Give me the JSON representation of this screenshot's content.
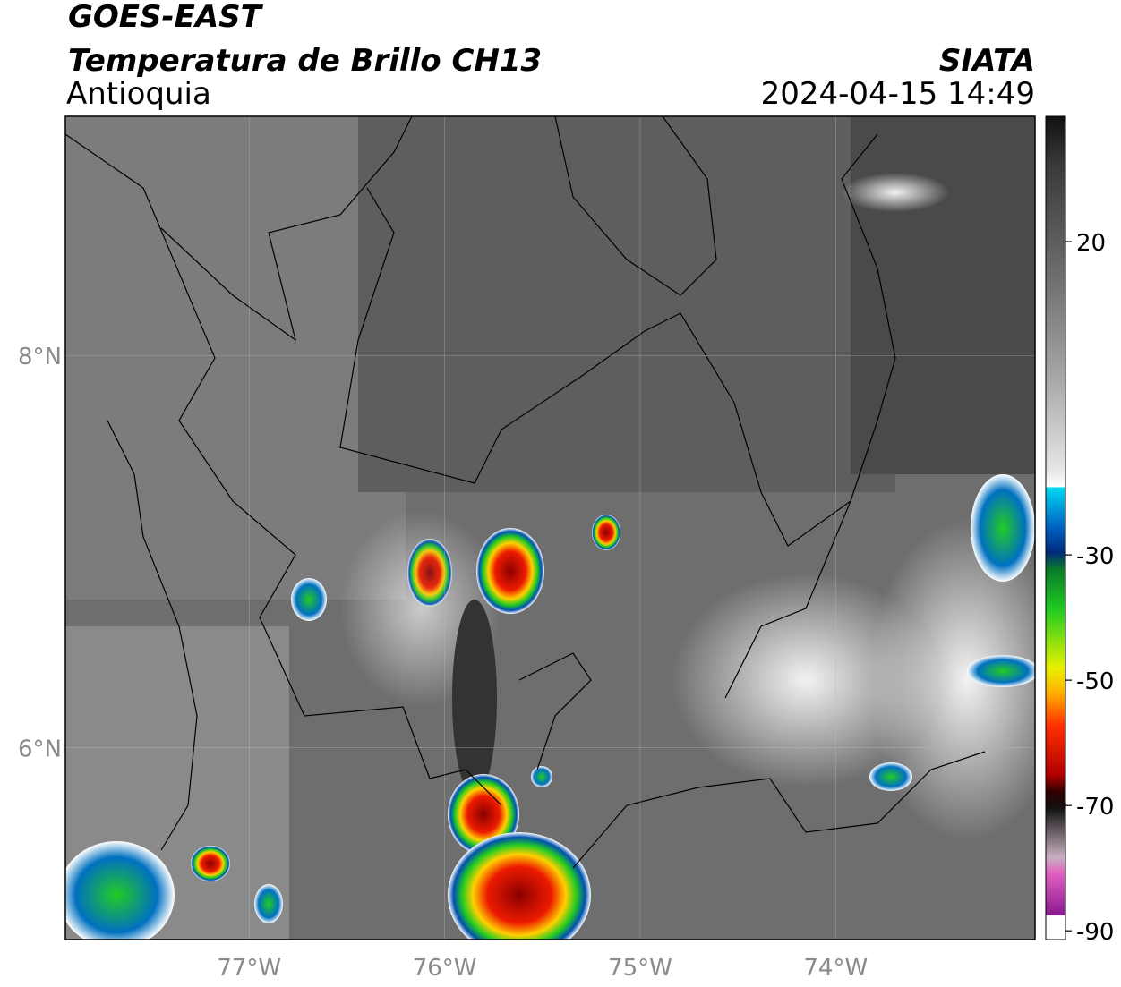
{
  "header": {
    "title": "GOES-EAST",
    "subtitle": "Temperatura de Brillo CH13",
    "region": "Antioquia",
    "agency": "SIATA",
    "datetime": "2024-04-15 14:49"
  },
  "map": {
    "lonlim": [
      -77.94,
      -72.98
    ],
    "latlim": [
      5.02,
      9.22
    ],
    "lon_ticks": [
      {
        "value": -77,
        "label": "77°W"
      },
      {
        "value": -76,
        "label": "76°W"
      },
      {
        "value": -75,
        "label": "75°W"
      },
      {
        "value": -74,
        "label": "74°W"
      }
    ],
    "lat_ticks": [
      {
        "value": 8,
        "label": "8°N"
      },
      {
        "value": 6,
        "label": "6°N"
      }
    ]
  },
  "colorbar": {
    "lim": [
      -91.4,
      40
    ],
    "ticks": [
      20,
      -30,
      -50,
      -70,
      -90
    ]
  }
}
